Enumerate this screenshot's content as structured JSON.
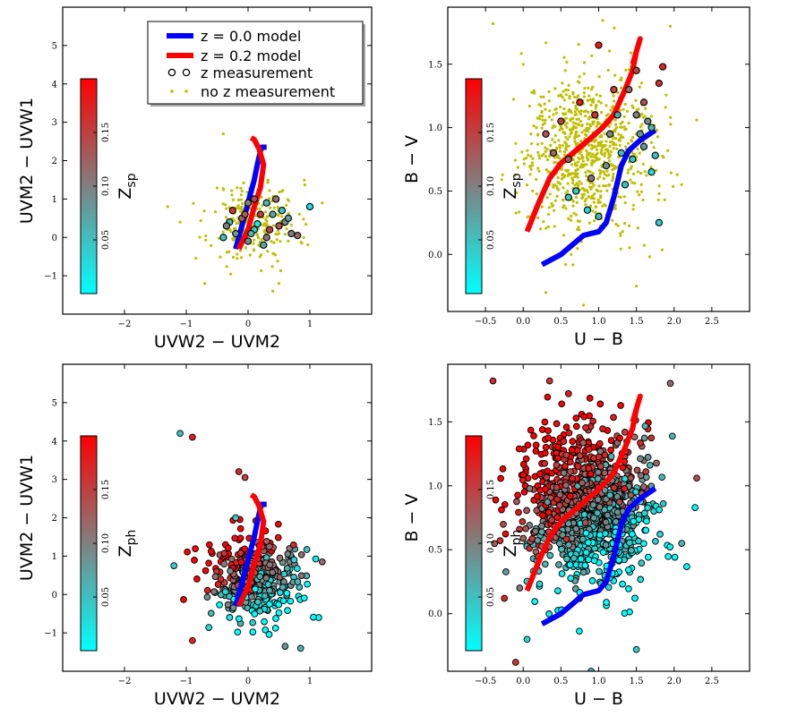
{
  "legend": {
    "items": [
      {
        "label": "z = 0.0 model",
        "kind": "line",
        "color": "#0000ff"
      },
      {
        "label": "z = 0.2 model",
        "kind": "line",
        "color": "#ff0000"
      },
      {
        "label": "z measurement",
        "kind": "circle"
      },
      {
        "label": "no z measurement",
        "kind": "dot",
        "color": "#bfbf00"
      }
    ]
  },
  "colors": {
    "cmap_low": "#00ffff",
    "cmap_mid": "#808080",
    "cmap_high": "#ff0000",
    "nozdot": "#bfbf00",
    "model_z0": "#0000ff",
    "model_z02": "#ff0000"
  },
  "chart_data": [
    {
      "type": "scatter",
      "panel": "top-left",
      "xlabel": "UVW2 − UVM2",
      "ylabel": "UVM2 − UVW1",
      "xlim": [
        -3.0,
        2.0
      ],
      "ylim": [
        -2.0,
        6.0
      ],
      "xticks": [
        -2,
        -1,
        0,
        1
      ],
      "xticklabels": [
        "−2",
        "−1",
        "0",
        "1"
      ],
      "yticks": [
        -1,
        0,
        1,
        2,
        3,
        4,
        5
      ],
      "yticklabels": [
        "−1",
        "0",
        "1",
        "2",
        "3",
        "4",
        "5"
      ],
      "colorbar": {
        "label": "Z",
        "label_sub": "sp",
        "range": [
          0.0,
          0.2
        ],
        "ticks": [
          0.05,
          0.1,
          0.15
        ],
        "ticklabels": [
          "0.05",
          "0.10",
          "0.15"
        ]
      },
      "model_z0": [
        [
          -0.2,
          -0.3
        ],
        [
          -0.1,
          0.3
        ],
        [
          0.0,
          0.9
        ],
        [
          0.1,
          1.5
        ],
        [
          0.15,
          1.9
        ],
        [
          0.2,
          2.25
        ],
        [
          0.22,
          2.35
        ],
        [
          0.3,
          2.35
        ]
      ],
      "model_z02": [
        [
          -0.15,
          -0.3
        ],
        [
          0.0,
          0.2
        ],
        [
          0.1,
          0.8
        ],
        [
          0.2,
          1.3
        ],
        [
          0.25,
          1.9
        ],
        [
          0.18,
          2.3
        ],
        [
          0.1,
          2.55
        ],
        [
          0.05,
          2.6
        ]
      ],
      "nozcloud": {
        "n": 240,
        "center": [
          0.1,
          0.4
        ],
        "spread": [
          0.35,
          0.55
        ],
        "seed": 11,
        "outliers": [
          [
            -1.3,
            0.8
          ],
          [
            -0.4,
            2.7
          ],
          [
            0.5,
            -1.2
          ],
          [
            -0.7,
            -1.2
          ],
          [
            1.2,
            0.9
          ],
          [
            0.4,
            -1.4
          ],
          [
            -1.1,
            0.4
          ],
          [
            0.9,
            0.0
          ]
        ]
      },
      "zpoints": [
        [
          -0.3,
          0.4,
          0.06
        ],
        [
          -0.1,
          0.5,
          0.12
        ],
        [
          0.0,
          0.9,
          0.1
        ],
        [
          0.1,
          0.2,
          0.04
        ],
        [
          0.2,
          0.6,
          0.15
        ],
        [
          -0.2,
          0.1,
          0.08
        ],
        [
          0.3,
          0.0,
          0.11
        ],
        [
          0.4,
          0.6,
          0.07
        ],
        [
          0.5,
          0.3,
          0.13
        ],
        [
          0.6,
          0.4,
          0.09
        ],
        [
          -0.4,
          0.0,
          0.05
        ],
        [
          0.1,
          1.0,
          0.14
        ],
        [
          0.3,
          0.9,
          0.06
        ],
        [
          0.7,
          0.1,
          0.1
        ],
        [
          0.8,
          0.05,
          0.12
        ],
        [
          1.0,
          0.8,
          0.03
        ],
        [
          0.0,
          -0.1,
          0.09
        ],
        [
          -0.25,
          0.7,
          0.16
        ],
        [
          0.15,
          0.35,
          0.02
        ],
        [
          0.45,
          1.0,
          0.11
        ],
        [
          0.25,
          -0.2,
          0.07
        ],
        [
          -0.05,
          0.6,
          0.13
        ],
        [
          0.55,
          0.7,
          0.05
        ],
        [
          0.35,
          0.2,
          0.15
        ],
        [
          -0.35,
          0.3,
          0.1
        ],
        [
          0.65,
          0.5,
          0.08
        ],
        [
          0.05,
          0.1,
          0.06
        ]
      ]
    },
    {
      "type": "scatter",
      "panel": "top-right",
      "xlabel": "U − B",
      "ylabel": "B − V",
      "xlim": [
        -1.0,
        3.0
      ],
      "ylim": [
        -0.45,
        1.95
      ],
      "xticks": [
        -0.5,
        0.0,
        0.5,
        1.0,
        1.5,
        2.0,
        2.5
      ],
      "xticklabels": [
        "−0.5",
        "0.0",
        "0.5",
        "1.0",
        "1.5",
        "2.0",
        "2.5"
      ],
      "yticks": [
        0.0,
        0.5,
        1.0,
        1.5
      ],
      "yticklabels": [
        "0.0",
        "0.5",
        "1.0",
        "1.5"
      ],
      "colorbar": {
        "label": "Z",
        "label_sub": "sp",
        "range": [
          0.0,
          0.2
        ],
        "ticks": [
          0.05,
          0.1,
          0.15
        ],
        "ticklabels": [
          "0.05",
          "0.10",
          "0.15"
        ]
      },
      "model_z0": [
        [
          0.25,
          -0.08
        ],
        [
          0.5,
          0.0
        ],
        [
          0.8,
          0.15
        ],
        [
          1.0,
          0.18
        ],
        [
          1.1,
          0.25
        ],
        [
          1.2,
          0.45
        ],
        [
          1.3,
          0.7
        ],
        [
          1.4,
          0.82
        ],
        [
          1.55,
          0.9
        ],
        [
          1.75,
          0.98
        ]
      ],
      "model_z02": [
        [
          0.05,
          0.18
        ],
        [
          0.2,
          0.4
        ],
        [
          0.35,
          0.6
        ],
        [
          0.5,
          0.72
        ],
        [
          0.7,
          0.82
        ],
        [
          0.9,
          0.92
        ],
        [
          1.05,
          1.0
        ],
        [
          1.2,
          1.1
        ],
        [
          1.35,
          1.3
        ],
        [
          1.45,
          1.45
        ],
        [
          1.5,
          1.6
        ],
        [
          1.55,
          1.7
        ],
        [
          1.45,
          1.5
        ]
      ],
      "nozcloud": {
        "n": 850,
        "center": [
          0.85,
          0.82
        ],
        "spread": [
          0.42,
          0.3
        ],
        "seed": 29,
        "outliers": [
          [
            -0.4,
            1.82
          ],
          [
            1.95,
            1.8
          ],
          [
            2.3,
            1.06
          ],
          [
            0.3,
            -0.3
          ],
          [
            0.8,
            -0.4
          ],
          [
            1.5,
            -0.25
          ],
          [
            2.1,
            0.55
          ],
          [
            0.0,
            1.5
          ]
        ]
      },
      "zpoints": [
        [
          1.0,
          1.65,
          0.18
        ],
        [
          1.2,
          1.3,
          0.15
        ],
        [
          1.4,
          1.3,
          0.12
        ],
        [
          1.5,
          1.1,
          0.1
        ],
        [
          1.6,
          1.2,
          0.14
        ],
        [
          1.7,
          1.0,
          0.06
        ],
        [
          1.8,
          1.35,
          0.16
        ],
        [
          1.85,
          1.48,
          0.17
        ],
        [
          1.7,
          0.65,
          0.03
        ],
        [
          1.8,
          0.25,
          0.04
        ],
        [
          1.55,
          0.95,
          0.08
        ],
        [
          1.3,
          0.8,
          0.05
        ],
        [
          1.1,
          0.7,
          0.09
        ],
        [
          0.9,
          0.6,
          0.11
        ],
        [
          0.7,
          0.5,
          0.04
        ],
        [
          0.6,
          0.45,
          0.05
        ],
        [
          0.85,
          0.35,
          0.03
        ],
        [
          1.0,
          0.3,
          0.06
        ],
        [
          0.5,
          1.05,
          0.15
        ],
        [
          0.3,
          0.95,
          0.14
        ],
        [
          0.4,
          0.8,
          0.12
        ],
        [
          0.6,
          0.75,
          0.13
        ],
        [
          1.25,
          1.1,
          0.07
        ],
        [
          1.45,
          0.75,
          0.04
        ],
        [
          1.6,
          0.85,
          0.08
        ],
        [
          1.35,
          0.55,
          0.05
        ],
        [
          1.15,
          0.95,
          0.1
        ],
        [
          0.95,
          1.1,
          0.16
        ],
        [
          0.75,
          1.2,
          0.18
        ],
        [
          1.65,
          1.05,
          0.09
        ],
        [
          1.75,
          0.78,
          0.05
        ],
        [
          1.5,
          1.45,
          0.15
        ]
      ]
    },
    {
      "type": "scatter",
      "panel": "bottom-left",
      "xlabel": "UVW2 − UVM2",
      "ylabel": "UVM2 − UVW1",
      "xlim": [
        -3.0,
        2.0
      ],
      "ylim": [
        -2.0,
        6.0
      ],
      "xticks": [
        -2,
        -1,
        0,
        1
      ],
      "xticklabels": [
        "−2",
        "−1",
        "0",
        "1"
      ],
      "yticks": [
        -1,
        0,
        1,
        2,
        3,
        4,
        5
      ],
      "yticklabels": [
        "−1",
        "0",
        "1",
        "2",
        "3",
        "4",
        "5"
      ],
      "colorbar": {
        "label": "Z",
        "label_sub": "ph",
        "range": [
          0.0,
          0.2
        ],
        "ticks": [
          0.05,
          0.1,
          0.15
        ],
        "ticklabels": [
          "0.05",
          "0.10",
          "0.15"
        ]
      },
      "model_z0": [
        [
          -0.2,
          -0.3
        ],
        [
          -0.1,
          0.3
        ],
        [
          0.0,
          0.9
        ],
        [
          0.1,
          1.5
        ],
        [
          0.15,
          1.9
        ],
        [
          0.2,
          2.25
        ],
        [
          0.22,
          2.35
        ],
        [
          0.3,
          2.35
        ]
      ],
      "model_z02": [
        [
          -0.15,
          -0.3
        ],
        [
          0.0,
          0.2
        ],
        [
          0.1,
          0.8
        ],
        [
          0.2,
          1.3
        ],
        [
          0.25,
          1.9
        ],
        [
          0.18,
          2.3
        ],
        [
          0.1,
          2.55
        ],
        [
          0.05,
          2.6
        ]
      ],
      "zcloud": {
        "n": 380,
        "center": [
          0.1,
          0.45
        ],
        "spread": [
          0.38,
          0.6
        ],
        "seed": 53,
        "outliers": [
          [
            -1.1,
            4.2,
            0.05
          ],
          [
            -0.9,
            4.1,
            0.18
          ],
          [
            -0.15,
            3.2,
            0.17
          ],
          [
            -0.05,
            3.05,
            0.15
          ],
          [
            -1.2,
            0.75,
            0.04
          ],
          [
            -0.9,
            -1.2,
            0.17
          ],
          [
            0.6,
            -1.35,
            0.08
          ],
          [
            0.85,
            -1.4,
            0.06
          ],
          [
            1.2,
            0.85,
            0.12
          ],
          [
            -0.2,
            2.0,
            0.04
          ]
        ]
      }
    },
    {
      "type": "scatter",
      "panel": "bottom-right",
      "xlabel": "U − B",
      "ylabel": "B − V",
      "xlim": [
        -1.0,
        3.0
      ],
      "ylim": [
        -0.45,
        1.95
      ],
      "xticks": [
        -0.5,
        0.0,
        0.5,
        1.0,
        1.5,
        2.0,
        2.5
      ],
      "xticklabels": [
        "−0.5",
        "0.0",
        "0.5",
        "1.0",
        "1.5",
        "2.0",
        "2.5"
      ],
      "yticks": [
        0.0,
        0.5,
        1.0,
        1.5
      ],
      "yticklabels": [
        "0.0",
        "0.5",
        "1.0",
        "1.5"
      ],
      "colorbar": {
        "label": "Z",
        "label_sub": "ph",
        "range": [
          0.0,
          0.2
        ],
        "ticks": [
          0.05,
          0.1,
          0.15
        ],
        "ticklabels": [
          "0.05",
          "0.10",
          "0.15"
        ]
      },
      "model_z0": [
        [
          0.25,
          -0.08
        ],
        [
          0.5,
          0.0
        ],
        [
          0.8,
          0.15
        ],
        [
          1.0,
          0.18
        ],
        [
          1.1,
          0.25
        ],
        [
          1.2,
          0.45
        ],
        [
          1.3,
          0.7
        ],
        [
          1.4,
          0.82
        ],
        [
          1.55,
          0.9
        ],
        [
          1.75,
          0.98
        ]
      ],
      "model_z02": [
        [
          0.05,
          0.18
        ],
        [
          0.2,
          0.4
        ],
        [
          0.35,
          0.6
        ],
        [
          0.5,
          0.72
        ],
        [
          0.7,
          0.82
        ],
        [
          0.9,
          0.92
        ],
        [
          1.05,
          1.0
        ],
        [
          1.2,
          1.1
        ],
        [
          1.35,
          1.3
        ],
        [
          1.45,
          1.45
        ],
        [
          1.5,
          1.6
        ],
        [
          1.55,
          1.7
        ],
        [
          1.45,
          1.5
        ]
      ],
      "zcloud": {
        "n": 1100,
        "center": [
          0.85,
          0.82
        ],
        "spread": [
          0.42,
          0.3
        ],
        "seed": 71,
        "outliers": [
          [
            -0.4,
            1.82,
            0.17
          ],
          [
            0.35,
            1.82,
            0.16
          ],
          [
            1.95,
            1.8,
            0.12
          ],
          [
            2.3,
            1.06,
            0.14
          ],
          [
            0.6,
            1.72,
            0.18
          ],
          [
            -0.1,
            -0.38,
            0.16
          ],
          [
            0.9,
            -0.45,
            0.05
          ],
          [
            1.5,
            -0.28,
            0.04
          ],
          [
            2.1,
            0.55,
            0.06
          ],
          [
            0.05,
            -0.2,
            0.03
          ],
          [
            -0.25,
            0.12,
            0.17
          ]
        ]
      }
    }
  ]
}
